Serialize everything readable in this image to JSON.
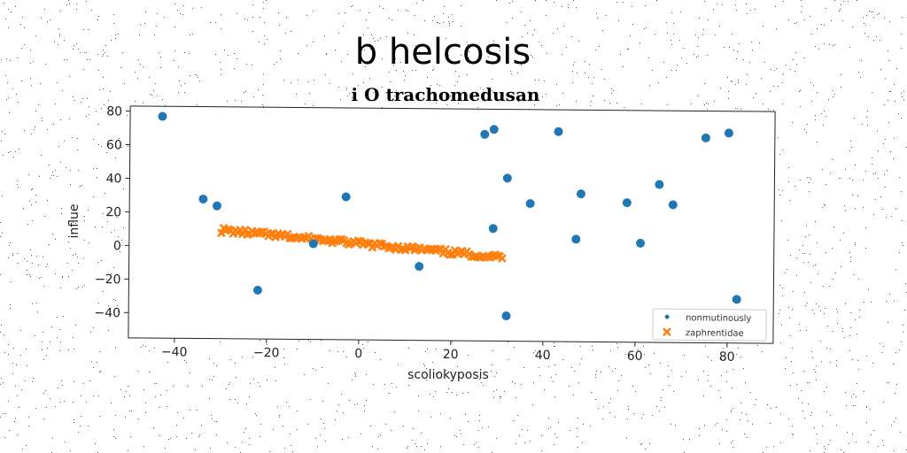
{
  "chart_data": {
    "type": "scatter",
    "title": "b helcosis",
    "subtitle": "i O trachomedusan",
    "xlabel": "scoliokyposis",
    "ylabel": "influe",
    "xlim": [
      -50,
      90
    ],
    "ylim": [
      -55,
      83
    ],
    "xticks": [
      -40,
      -20,
      0,
      20,
      40,
      60,
      80
    ],
    "yticks": [
      -40,
      -20,
      0,
      20,
      40,
      60,
      80
    ],
    "grid": false,
    "legend_position": "lower-right",
    "series": [
      {
        "name": "nonmutinously",
        "marker": "circle",
        "color": "#1f77b4",
        "points": [
          [
            -43,
            77
          ],
          [
            -34,
            28
          ],
          [
            -31,
            24
          ],
          [
            -22,
            -26
          ],
          [
            -3,
            30
          ],
          [
            -10,
            2
          ],
          [
            13,
            -11
          ],
          [
            27,
            68
          ],
          [
            29,
            71
          ],
          [
            29,
            12
          ],
          [
            32,
            42
          ],
          [
            32,
            -40
          ],
          [
            37,
            27
          ],
          [
            43,
            70
          ],
          [
            47,
            6
          ],
          [
            48,
            33
          ],
          [
            58,
            28
          ],
          [
            61,
            4
          ],
          [
            65,
            39
          ],
          [
            68,
            27
          ],
          [
            75,
            67
          ],
          [
            80,
            70
          ],
          [
            82,
            -29
          ]
        ]
      },
      {
        "name": "zaphrentidae",
        "marker": "x",
        "color": "#ff7f0e",
        "line": {
          "x_start": -30,
          "x_end": 31,
          "slope": -0.24,
          "intercept": 2.3,
          "count": 120,
          "spread": 1.6
        }
      }
    ]
  }
}
